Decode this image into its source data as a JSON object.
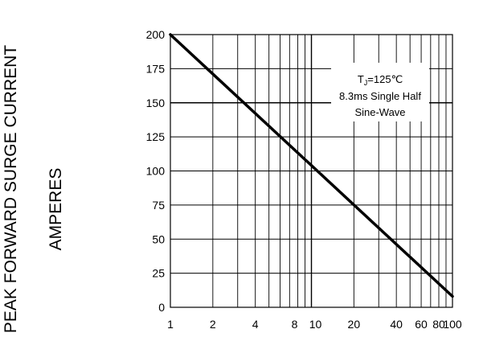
{
  "chart_data": {
    "type": "line",
    "title": "",
    "ylabel_lines": [
      "PEAK FORWARD SURGE CURRENT",
      "AMPERES"
    ],
    "xlabel": "",
    "xscale": "log",
    "xlim": [
      1,
      100
    ],
    "ylim": [
      0,
      200
    ],
    "x_tick_labels": [
      "1",
      "2",
      "4",
      "8",
      "10",
      "20",
      "40",
      "60",
      "80",
      "100"
    ],
    "y_tick_labels": [
      "0",
      "25",
      "50",
      "75",
      "100",
      "125",
      "150",
      "175",
      "200"
    ],
    "grid": true,
    "series": [
      {
        "x": [
          1,
          100
        ],
        "y": [
          200,
          8
        ]
      }
    ],
    "annotation": {
      "tj_prefix": "T",
      "tj_subscript": "J",
      "tj_value": "=125℃",
      "line2": "8.3ms Single Half",
      "line3": "Sine-Wave"
    },
    "colors": {
      "line": "#000000",
      "grid": "#000000"
    }
  }
}
